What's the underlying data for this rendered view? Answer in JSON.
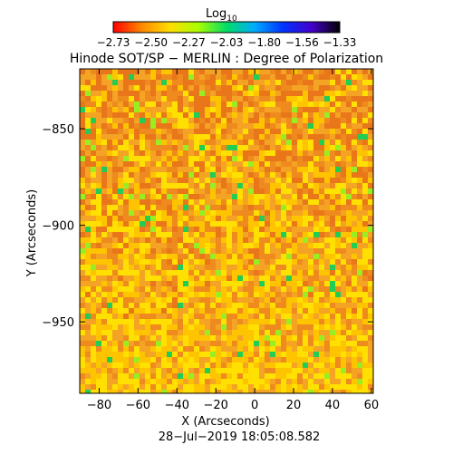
{
  "chart_data": {
    "type": "heatmap",
    "title": "Hinode SOT/SP − MERLIN : Degree of Polarization",
    "xlabel": "X (Arcseconds)",
    "ylabel": "Y (Arcseconds)",
    "xlim": [
      -90,
      61
    ],
    "ylim": [
      -987,
      -819
    ],
    "x_ticks": [
      -80,
      -60,
      -40,
      -20,
      0,
      20,
      40,
      60
    ],
    "y_ticks": [
      -850,
      -900,
      -950
    ],
    "x_tick_labels": [
      "−80",
      "−60",
      "−40",
      "−20",
      "0",
      "20",
      "40",
      "60"
    ],
    "y_tick_labels": [
      "−850",
      "−900",
      "−950"
    ],
    "colorbar": {
      "label_base": "Log",
      "label_sub": "10",
      "min": -2.73,
      "max": -1.33,
      "tick_labels": [
        "−2.73",
        "−2.50",
        "−2.27",
        "−2.03",
        "−1.80",
        "−1.56",
        "−1.33"
      ],
      "colors": [
        "#ff0000",
        "#ff8800",
        "#ffdd00",
        "#aaff00",
        "#00dd66",
        "#00aaff",
        "#0033ff",
        "#4400cc",
        "#000000"
      ]
    },
    "grid": false
  },
  "timestamp": "28−Jul−2019  18:05:08.582"
}
